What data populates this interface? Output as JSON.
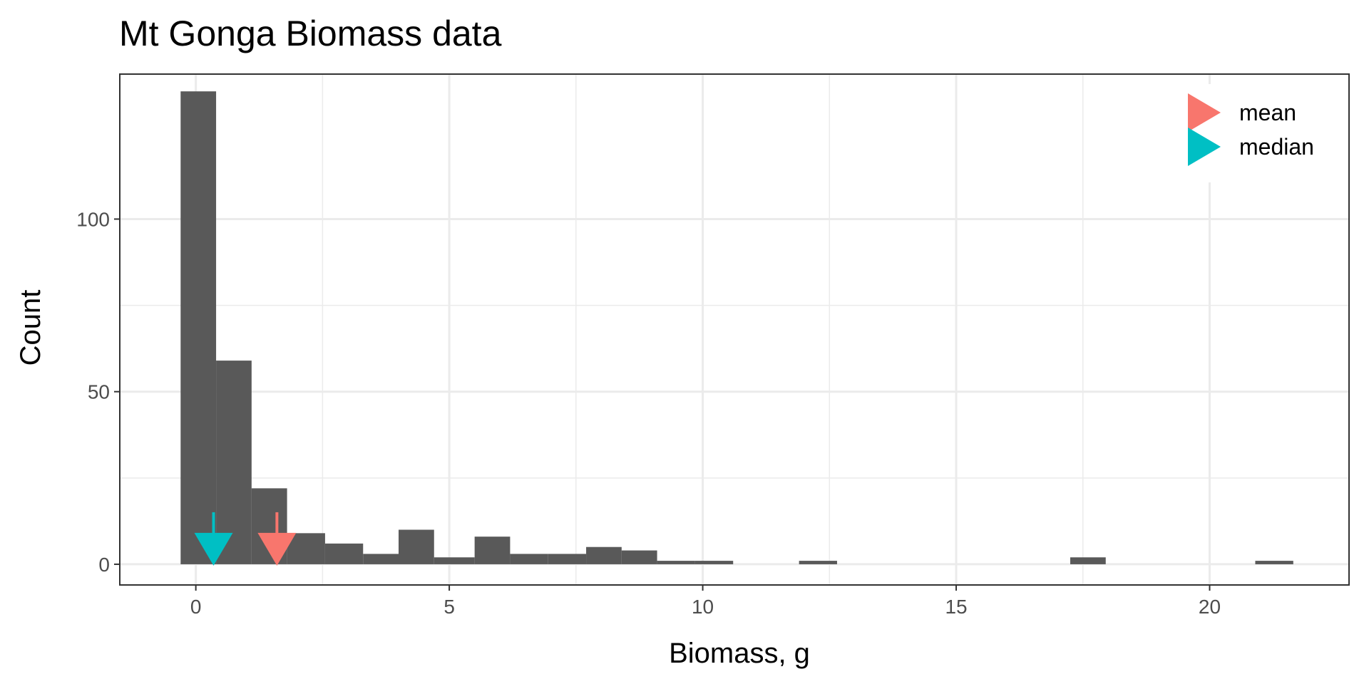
{
  "chart_data": {
    "type": "bar",
    "title": "Mt Gonga Biomass data",
    "xlabel": "Biomass, g",
    "ylabel": "Count",
    "xlim": [
      -1.5,
      22.75
    ],
    "ylim": [
      -6,
      142
    ],
    "x_ticks": [
      0,
      5,
      10,
      15,
      20
    ],
    "y_ticks": [
      0,
      50,
      100
    ],
    "grid": true,
    "legend_position": "top-right",
    "bar_color": "#595959",
    "bins": [
      {
        "x0": -0.3,
        "x1": 0.4,
        "count": 137
      },
      {
        "x0": 0.4,
        "x1": 1.1,
        "count": 59
      },
      {
        "x0": 1.1,
        "x1": 1.8,
        "count": 22
      },
      {
        "x0": 1.8,
        "x1": 2.55,
        "count": 9
      },
      {
        "x0": 2.55,
        "x1": 3.3,
        "count": 6
      },
      {
        "x0": 3.3,
        "x1": 4.0,
        "count": 3
      },
      {
        "x0": 4.0,
        "x1": 4.7,
        "count": 10
      },
      {
        "x0": 4.7,
        "x1": 5.5,
        "count": 2
      },
      {
        "x0": 5.5,
        "x1": 6.2,
        "count": 8
      },
      {
        "x0": 6.2,
        "x1": 6.95,
        "count": 3
      },
      {
        "x0": 6.95,
        "x1": 7.7,
        "count": 3
      },
      {
        "x0": 7.7,
        "x1": 8.4,
        "count": 5
      },
      {
        "x0": 8.4,
        "x1": 9.1,
        "count": 4
      },
      {
        "x0": 9.1,
        "x1": 9.85,
        "count": 1
      },
      {
        "x0": 9.85,
        "x1": 10.6,
        "count": 1
      },
      {
        "x0": 11.9,
        "x1": 12.65,
        "count": 1
      },
      {
        "x0": 17.25,
        "x1": 17.95,
        "count": 2
      },
      {
        "x0": 20.9,
        "x1": 21.65,
        "count": 1
      }
    ],
    "markers": [
      {
        "name": "mean",
        "x": 1.6,
        "color": "#F8766D"
      },
      {
        "name": "median",
        "x": 0.35,
        "color": "#00BFC4"
      }
    ]
  }
}
